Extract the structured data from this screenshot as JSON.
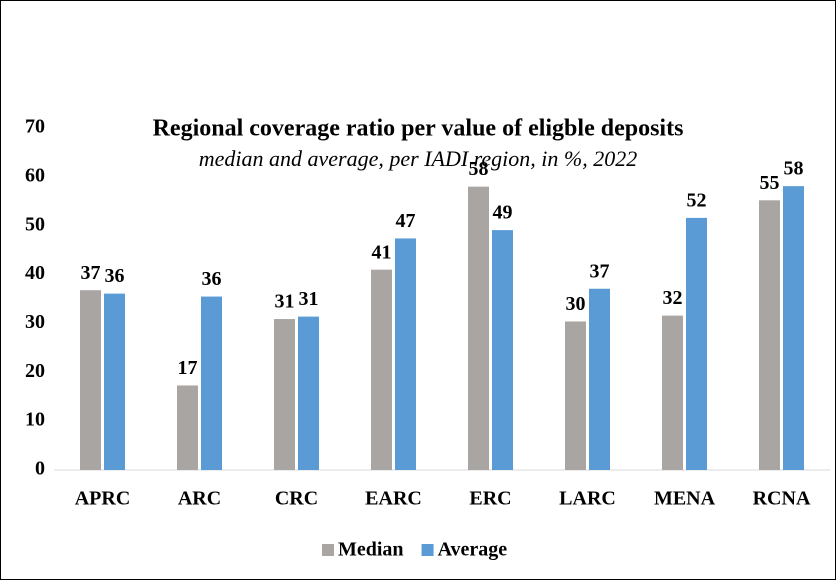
{
  "chart_data": {
    "type": "bar",
    "title": "Regional coverage ratio per value of eligble deposits",
    "subtitle": "median and average, per IADI region, in %, 2022",
    "categories": [
      "APRC",
      "ARC",
      "CRC",
      "EARC",
      "ERC",
      "LARC",
      "MENA",
      "RCNA"
    ],
    "series": [
      {
        "name": "Median",
        "color": "#a9a5a3",
        "values": [
          36.8,
          17.3,
          30.9,
          41.0,
          58.0,
          30.4,
          31.6,
          55.2
        ],
        "value_labels": [
          "37",
          "17",
          "31",
          "41",
          "58",
          "30",
          "32",
          "55"
        ]
      },
      {
        "name": "Average",
        "color": "#5b9bd5",
        "values": [
          36.1,
          35.5,
          31.4,
          47.4,
          49.1,
          37.1,
          51.6,
          58.1
        ],
        "value_labels": [
          "36",
          "36",
          "31",
          "47",
          "49",
          "37",
          "52",
          "58"
        ]
      }
    ],
    "ylim": [
      0,
      70
    ],
    "yticks": [
      0,
      10,
      20,
      30,
      40,
      50,
      60,
      70
    ],
    "grid": false,
    "legend": "bottom"
  }
}
